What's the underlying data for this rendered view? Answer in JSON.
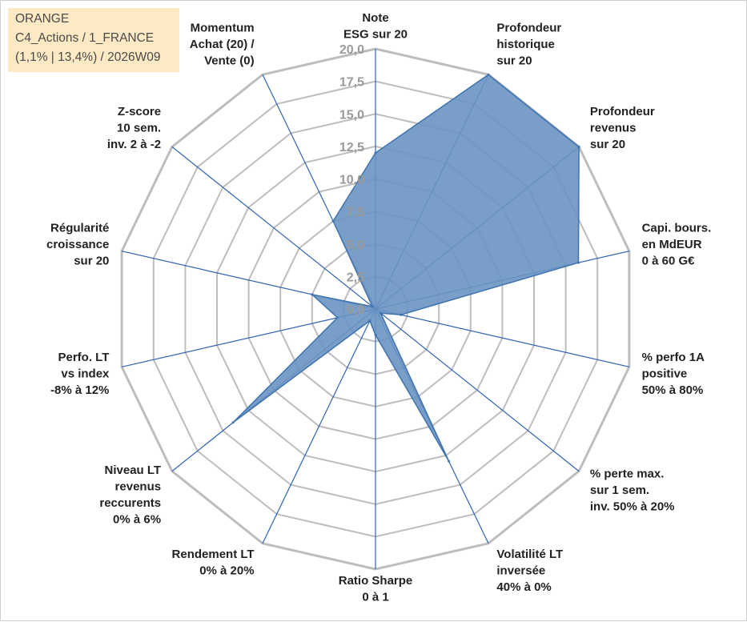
{
  "info_box": {
    "line1": "ORANGE",
    "line2": "C4_Actions / 1_FRANCE",
    "line3": "(1,1% | 13,4%) / 2026W09"
  },
  "colors": {
    "fill": "#6a93c2",
    "stroke": "#3f73ae",
    "axis": "#2f62b5",
    "grid": "#bdbdbd",
    "tick": "#9a9a9a"
  },
  "chart_data": {
    "type": "radar",
    "rlim": [
      0,
      20
    ],
    "ticks": [
      "0,0",
      "2,5",
      "5,0",
      "7,5",
      "10,0",
      "12,5",
      "15,0",
      "17,5",
      "20,0"
    ],
    "axes": [
      {
        "lines": [
          "Note",
          "ESG sur 20"
        ],
        "value": 12
      },
      {
        "lines": [
          "Profondeur",
          "historique",
          "sur 20"
        ],
        "value": 20
      },
      {
        "lines": [
          "Profondeur",
          "revenus",
          "sur 20"
        ],
        "value": 20
      },
      {
        "lines": [
          "Capi. bours.",
          "en MdEUR",
          "0 à 60 G€"
        ],
        "value": 16
      },
      {
        "lines": [
          "% perfo 1A",
          "positive",
          "50% à 80%"
        ],
        "value": 2
      },
      {
        "lines": [
          "% perte max.",
          "sur 1 sem.",
          "inv. 50% à 20%"
        ],
        "value": 0.5
      },
      {
        "lines": [
          "Volatilité LT",
          "inversée",
          "40% à 0%"
        ],
        "value": 13
      },
      {
        "lines": [
          "Ratio Sharpe",
          "0 à 1"
        ],
        "value": 2
      },
      {
        "lines": [
          "Rendement LT",
          "0% à 20%"
        ],
        "value": 1
      },
      {
        "lines": [
          "Niveau LT",
          "revenus",
          "reccurents",
          "0% à 6%"
        ],
        "value": 14
      },
      {
        "lines": [
          "Perfo. LT",
          "vs index",
          "-8% à 12%"
        ],
        "value": 3
      },
      {
        "lines": [
          "Régularité",
          "croissance",
          "sur 20"
        ],
        "value": 5
      },
      {
        "lines": [
          "Z-score",
          "10 sem.",
          "inv. 2 à -2"
        ],
        "value": 0.3
      },
      {
        "lines": [
          "Momentum",
          "Achat (20) /",
          "Vente (0)"
        ],
        "value": 7.5
      }
    ],
    "grid": true,
    "legend": "none"
  }
}
